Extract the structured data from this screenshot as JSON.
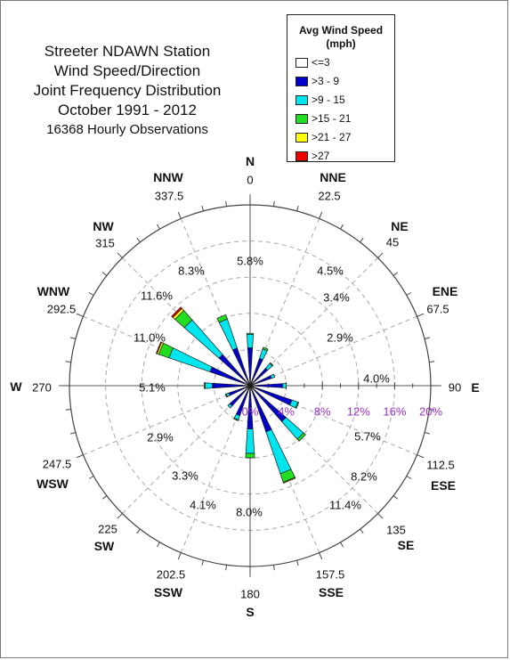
{
  "title_lines": [
    "Streeter NDAWN Station",
    "Wind Speed/Direction",
    "Joint Frequency Distribution",
    "October 1991 - 2012"
  ],
  "observations": "16368 Hourly Observations",
  "legend": {
    "title_line1": "Avg Wind Speed",
    "title_line2": "(mph)",
    "entries": [
      {
        "label": "<=3",
        "color": "#ffffff"
      },
      {
        "label": ">3 - 9",
        "color": "#0000cc"
      },
      {
        "label": ">9 - 15",
        "color": "#00e5ee"
      },
      {
        "label": ">15 - 21",
        "color": "#22dd22"
      },
      {
        "label": ">21 - 27",
        "color": "#ffff00"
      },
      {
        "label": ">27",
        "color": "#ee0000"
      }
    ]
  },
  "chart_data": {
    "type": "polar-stacked-bar",
    "title": "Streeter NDAWN Station Wind Speed/Direction Joint Frequency Distribution October 1991 - 2012",
    "subtitle": "16368 Hourly Observations",
    "radial_axis": {
      "max": 20,
      "ticks": [
        0,
        4,
        8,
        12,
        16,
        20
      ],
      "tick_labels": [
        "0%",
        "4%",
        "8%",
        "12%",
        "16%",
        "20%"
      ],
      "unit": "%",
      "tick_color": "#9933cc"
    },
    "directions": [
      {
        "name": "N",
        "degrees": "0",
        "frequency": "5.8%"
      },
      {
        "name": "NNE",
        "degrees": "22.5",
        "frequency": "4.5%"
      },
      {
        "name": "NE",
        "degrees": "45",
        "frequency": "3.4%"
      },
      {
        "name": "ENE",
        "degrees": "67.5",
        "frequency": "2.9%"
      },
      {
        "name": "E",
        "degrees": "90",
        "frequency": "4.0%"
      },
      {
        "name": "ESE",
        "degrees": "112.5",
        "frequency": "5.7%"
      },
      {
        "name": "SE",
        "degrees": "135",
        "frequency": "8.2%"
      },
      {
        "name": "SSE",
        "degrees": "157.5",
        "frequency": "11.4%"
      },
      {
        "name": "S",
        "degrees": "180",
        "frequency": "8.0%"
      },
      {
        "name": "SSW",
        "degrees": "202.5",
        "frequency": "4.1%"
      },
      {
        "name": "SW",
        "degrees": "225",
        "frequency": "3.3%"
      },
      {
        "name": "WSW",
        "degrees": "247.5",
        "frequency": "2.9%"
      },
      {
        "name": "W",
        "degrees": "270",
        "frequency": "5.1%"
      },
      {
        "name": "WNW",
        "degrees": "292.5",
        "frequency": "11.0%"
      },
      {
        "name": "NW",
        "degrees": "315",
        "frequency": "11.6%"
      },
      {
        "name": "NNW",
        "degrees": "337.5",
        "frequency": "8.3%"
      }
    ],
    "series": [
      {
        "name": "<=3",
        "values": [
          0.4,
          0.4,
          0.3,
          0.3,
          0.3,
          0.4,
          0.4,
          0.4,
          0.4,
          0.4,
          0.4,
          0.4,
          0.3,
          0.3,
          0.3,
          0.3
        ]
      },
      {
        "name": ">3 - 9",
        "values": [
          3.8,
          2.8,
          2.3,
          2.2,
          3.3,
          4.5,
          4.9,
          5.0,
          4.4,
          3.1,
          2.6,
          2.1,
          3.9,
          4.4,
          4.3,
          4.1
        ]
      },
      {
        "name": ">9 - 15",
        "values": [
          1.5,
          1.1,
          0.7,
          0.4,
          0.4,
          0.7,
          2.6,
          4.9,
          2.7,
          0.5,
          0.3,
          0.3,
          0.8,
          4.8,
          5.1,
          3.4
        ]
      },
      {
        "name": ">15 - 21",
        "values": [
          0.1,
          0.2,
          0.1,
          0.0,
          0.0,
          0.1,
          0.3,
          1.0,
          0.5,
          0.1,
          0.0,
          0.1,
          0.1,
          1.2,
          1.4,
          0.5
        ]
      },
      {
        "name": ">21 - 27",
        "values": [
          0.0,
          0.0,
          0.0,
          0.0,
          0.0,
          0.0,
          0.0,
          0.1,
          0.0,
          0.0,
          0.0,
          0.0,
          0.0,
          0.2,
          0.3,
          0.0
        ]
      },
      {
        "name": ">27",
        "values": [
          0.0,
          0.0,
          0.0,
          0.0,
          0.0,
          0.0,
          0.0,
          0.0,
          0.0,
          0.0,
          0.0,
          0.0,
          0.0,
          0.1,
          0.2,
          0.0
        ]
      }
    ],
    "grid": true
  }
}
